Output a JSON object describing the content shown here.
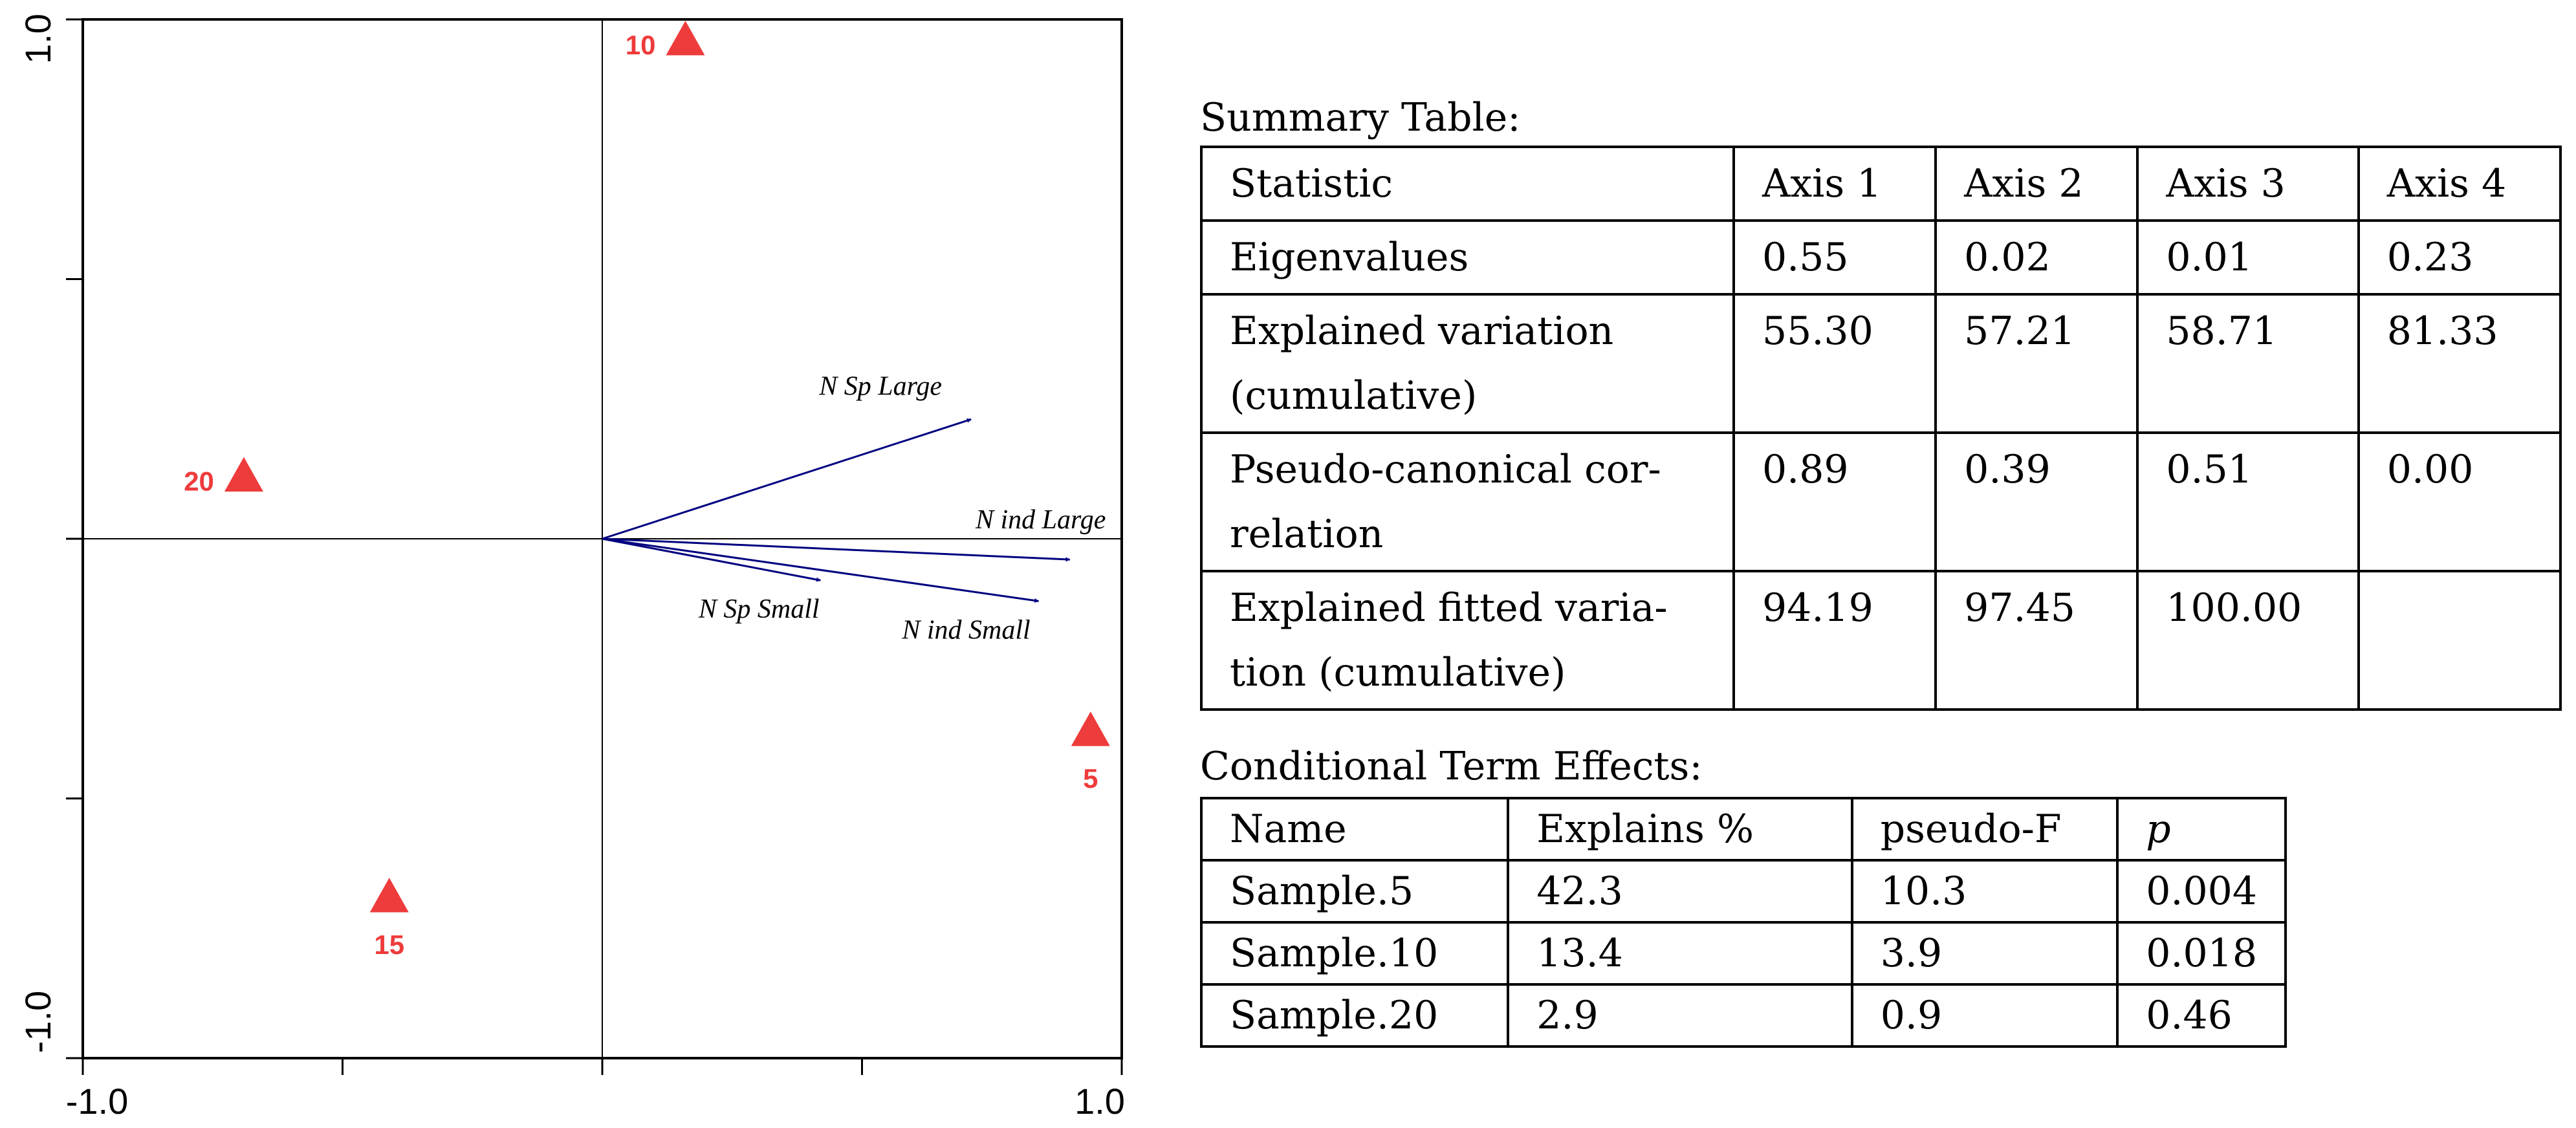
{
  "chart_data": {
    "type": "scatter",
    "title": "",
    "xlabel": "",
    "ylabel": "",
    "xlim": [
      -1.0,
      1.0
    ],
    "ylim": [
      -1.0,
      1.0
    ],
    "x_tick_labels": [
      "-1.0",
      "1.0"
    ],
    "y_tick_labels": [
      "1.0",
      "-1.0"
    ],
    "x_ticks": [
      -1.0,
      -0.5,
      0.0,
      0.5,
      1.0
    ],
    "y_ticks": [
      1.0,
      0.5,
      0.0,
      -0.5,
      -1.0
    ],
    "grid": false,
    "site_color": "#ee3b3b",
    "vector_color": "#000080",
    "points": [
      {
        "label": "10",
        "x": 0.16,
        "y": 0.96,
        "label_side": "left"
      },
      {
        "label": "20",
        "x": -0.69,
        "y": 0.12,
        "label_side": "left"
      },
      {
        "label": "5",
        "x": 0.94,
        "y": -0.37,
        "label_side": "below"
      },
      {
        "label": "15",
        "x": -0.41,
        "y": -0.69,
        "label_side": "below"
      }
    ],
    "vectors": [
      {
        "label": "N Sp Large",
        "x": 0.71,
        "y": 0.23
      },
      {
        "label": "N ind Large",
        "x": 0.9,
        "y": -0.04
      },
      {
        "label": "N Sp Small",
        "x": 0.42,
        "y": -0.08
      },
      {
        "label": "N ind Small",
        "x": 0.84,
        "y": -0.12
      }
    ]
  },
  "summary": {
    "caption": "Summary Table:",
    "headers": [
      "Statistic",
      "Axis 1",
      "Axis 2",
      "Axis 3",
      "Axis 4"
    ],
    "rows": [
      {
        "label": "Eigenvalues",
        "values": [
          "0.55",
          "0.02",
          "0.01",
          "0.23"
        ]
      },
      {
        "label_line1": "Explained variation",
        "label_line2": "(cumulative)",
        "values": [
          "55.30",
          "57.21",
          "58.71",
          "81.33"
        ]
      },
      {
        "label_line1": "Pseudo-canonical cor-",
        "label_line2": "relation",
        "values": [
          "0.89",
          "0.39",
          "0.51",
          "0.00"
        ]
      },
      {
        "label_line1": "Explained fitted varia-",
        "label_line2": "tion (cumulative)",
        "values": [
          "94.19",
          "97.45",
          "100.00",
          ""
        ]
      }
    ]
  },
  "effects": {
    "caption": "Conditional Term Effects:",
    "headers": [
      "Name",
      "Explains %",
      "pseudo-F",
      "p"
    ],
    "rows": [
      [
        "Sample.5",
        "42.3",
        "10.3",
        "0.004"
      ],
      [
        "Sample.10",
        "13.4",
        "3.9",
        "0.018"
      ],
      [
        "Sample.20",
        "2.9",
        "0.9",
        "0.46"
      ]
    ]
  }
}
